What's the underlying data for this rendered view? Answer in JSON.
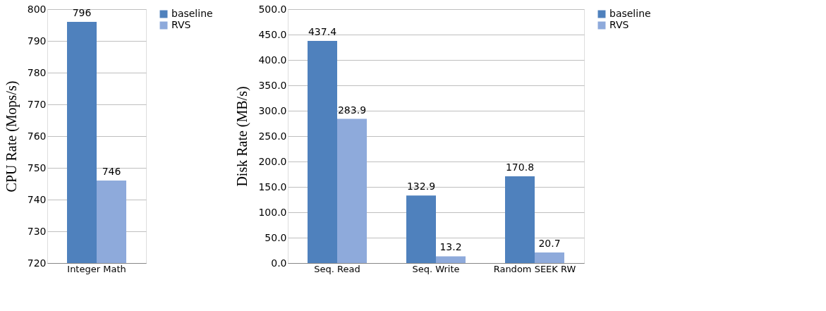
{
  "chart_data": [
    {
      "type": "bar",
      "categories": [
        "Integer Math"
      ],
      "ylabel": "CPU Rate (Mops/s)",
      "ylim": [
        720,
        800
      ],
      "yticks": [
        720,
        730,
        740,
        750,
        760,
        770,
        780,
        790,
        800
      ],
      "grid": "y",
      "legend": "right",
      "data_labels": true,
      "series": [
        {
          "name": "baseline",
          "color": "#4f81bd",
          "values": [
            796
          ]
        },
        {
          "name": "RVS",
          "color": "#8eaadb",
          "values": [
            746
          ]
        }
      ]
    },
    {
      "type": "bar",
      "categories": [
        "Seq. Read",
        "Seq. Write",
        "Random SEEK RW"
      ],
      "ylabel": "Disk Rate (MB/s)",
      "ylim": [
        0,
        500
      ],
      "yticks": [
        {
          "value": 0,
          "label": "0.0"
        },
        {
          "value": 50,
          "label": "50.0"
        },
        {
          "value": 100,
          "label": "100.0"
        },
        {
          "value": 150,
          "label": "150.0"
        },
        {
          "value": 200,
          "label": "200.0"
        },
        {
          "value": 250,
          "label": "250.0"
        },
        {
          "value": 300,
          "label": "300.0"
        },
        {
          "value": 350,
          "label": "350.0"
        },
        {
          "value": 400,
          "label": "400.0"
        },
        {
          "value": 450,
          "label": "450.0"
        },
        {
          "value": 500,
          "label": "500.0"
        }
      ],
      "grid": "y",
      "legend": "right",
      "data_labels": true,
      "series": [
        {
          "name": "baseline",
          "color": "#4f81bd",
          "values": [
            437.4,
            132.9,
            170.8
          ]
        },
        {
          "name": "RVS",
          "color": "#8eaadb",
          "values": [
            283.9,
            13.2,
            20.7
          ]
        }
      ]
    }
  ]
}
